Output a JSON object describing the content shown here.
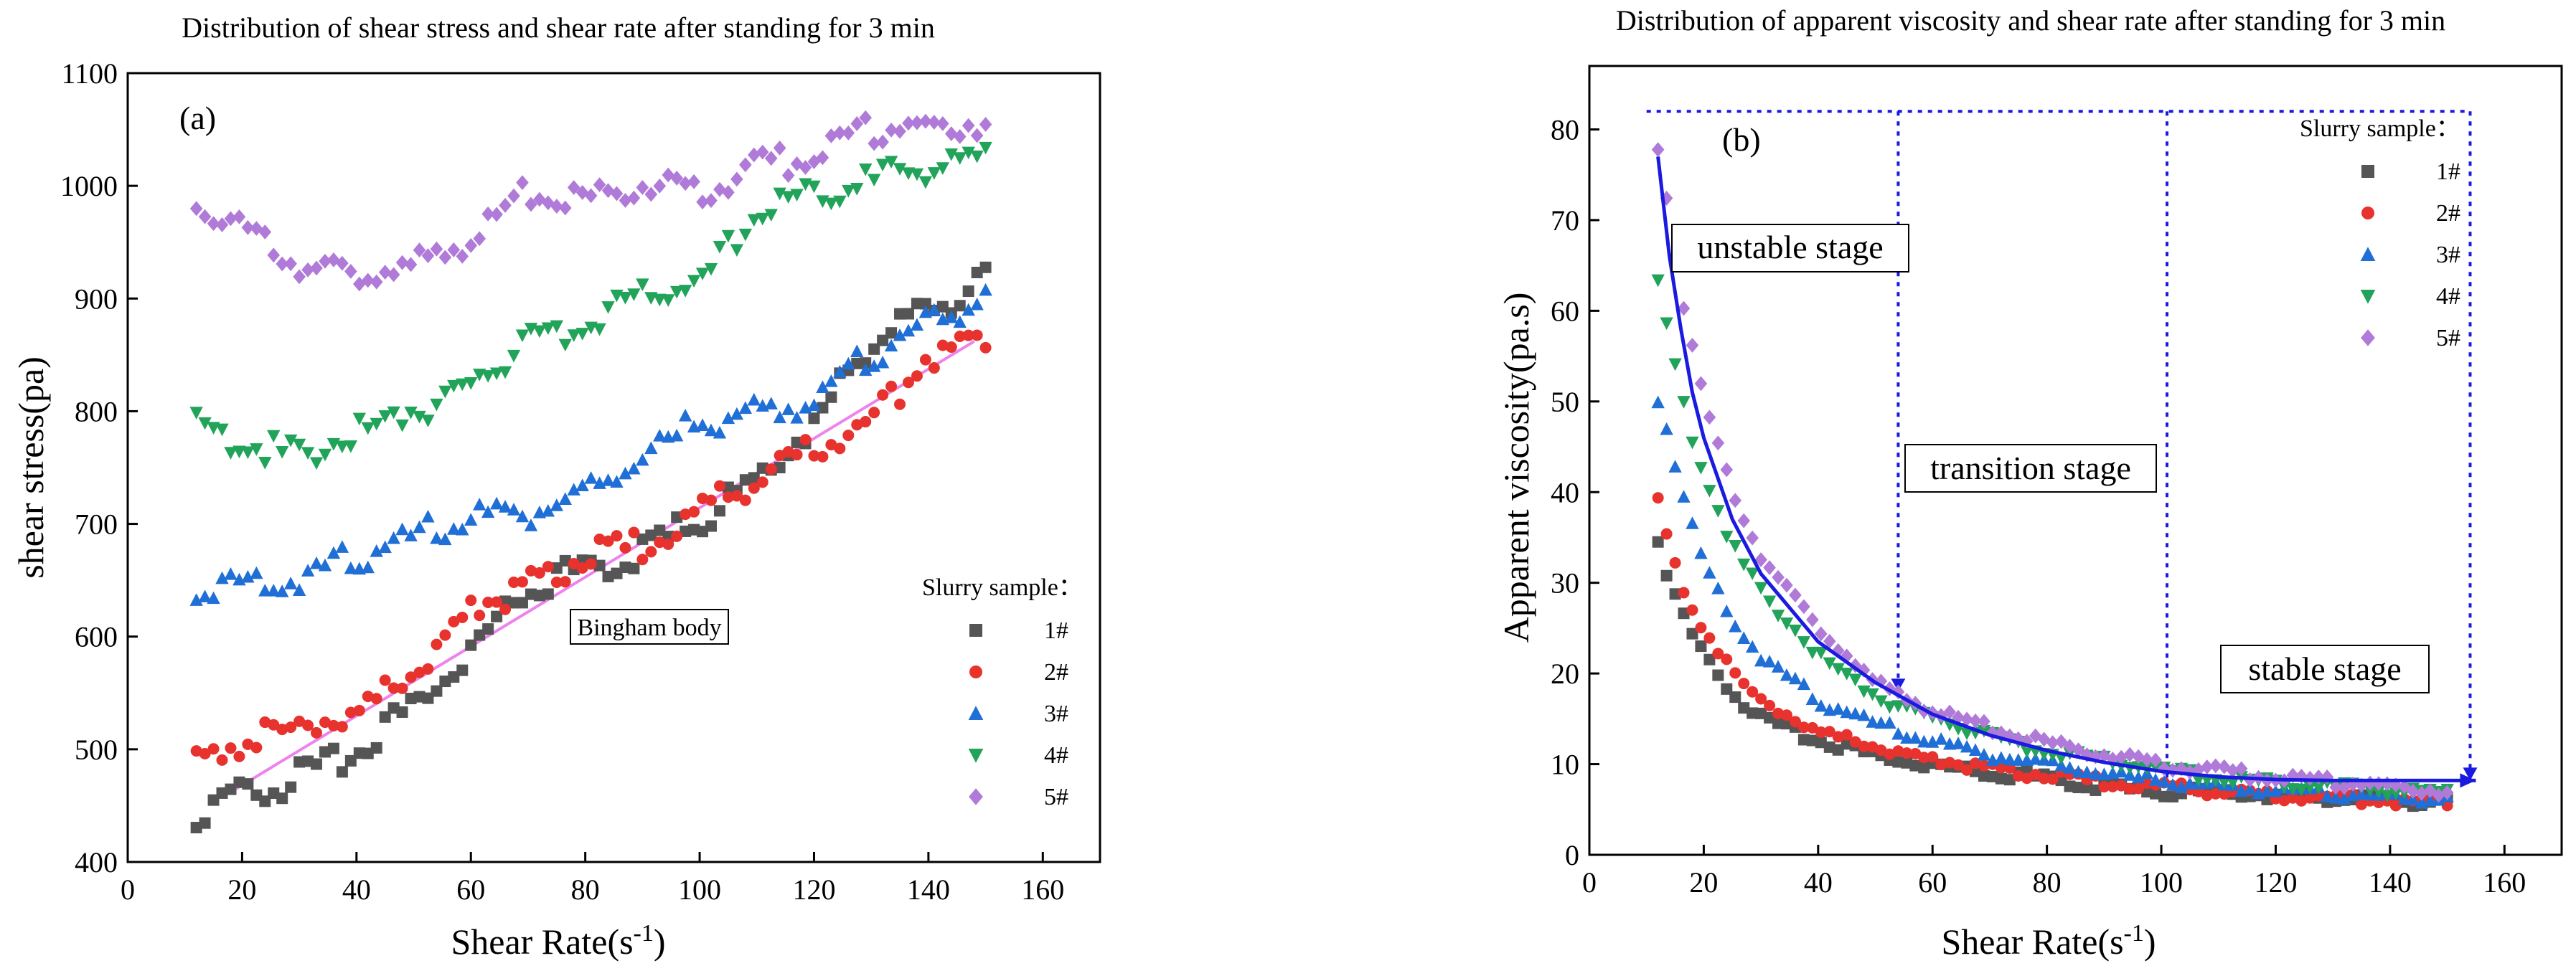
{
  "chart_data": [
    {
      "type": "scatter",
      "title": "Distribution of shear stress and shear rate after standing for 3 min",
      "panel_label": "(a)",
      "xlabel": "Shear Rate(s",
      "xlabel_sup": "-1",
      "xlabel_end": ")",
      "ylabel": "shear stress(pa)",
      "xlim": [
        0,
        170
      ],
      "ylim": [
        400,
        1100
      ],
      "xticks": [
        "0",
        "20",
        "40",
        "60",
        "80",
        "100",
        "120",
        "140",
        "160"
      ],
      "yticks": [
        "400",
        "500",
        "600",
        "700",
        "800",
        "900",
        "1000",
        "1100"
      ],
      "legend_title": "Slurry sample：",
      "legend_position": "lower-right",
      "annotation": "Bingham body",
      "fit_line": {
        "x": [
          18,
          148
        ],
        "y": [
          462,
          862
        ],
        "color": "#ee82ee"
      },
      "series": [
        {
          "name": "1#",
          "marker": "square",
          "color": "#555555",
          "x": [
            12,
            20,
            30,
            40,
            50,
            60,
            70,
            80,
            90,
            100,
            110,
            120,
            130,
            140,
            150
          ],
          "y": [
            442,
            460,
            475,
            495,
            540,
            590,
            645,
            660,
            675,
            705,
            735,
            790,
            860,
            890,
            915
          ]
        },
        {
          "name": "2#",
          "marker": "circle",
          "color": "#e8322e",
          "x": [
            12,
            20,
            30,
            40,
            50,
            60,
            70,
            80,
            90,
            100,
            110,
            120,
            130,
            140,
            150
          ],
          "y": [
            490,
            505,
            520,
            530,
            570,
            625,
            645,
            670,
            680,
            710,
            740,
            770,
            790,
            850,
            865
          ]
        },
        {
          "name": "3#",
          "marker": "triangle-up",
          "color": "#1f6fd6",
          "x": [
            12,
            20,
            30,
            40,
            50,
            60,
            70,
            80,
            90,
            100,
            110,
            120,
            130,
            140,
            150
          ],
          "y": [
            635,
            645,
            655,
            670,
            690,
            705,
            710,
            725,
            760,
            790,
            800,
            810,
            850,
            880,
            900
          ]
        },
        {
          "name": "4#",
          "marker": "triangle-down",
          "color": "#21a35a",
          "x": [
            12,
            20,
            30,
            40,
            50,
            60,
            70,
            80,
            90,
            100,
            110,
            120,
            130,
            140,
            150
          ],
          "y": [
            790,
            770,
            760,
            780,
            800,
            820,
            860,
            880,
            900,
            910,
            980,
            995,
            1005,
            1015,
            1020
          ]
        },
        {
          "name": "5#",
          "marker": "diamond",
          "color": "#b07ad8",
          "x": [
            12,
            20,
            30,
            40,
            50,
            60,
            70,
            80,
            90,
            100,
            110,
            120,
            130,
            140,
            150
          ],
          "y": [
            985,
            960,
            930,
            920,
            930,
            955,
            995,
            990,
            1000,
            995,
            1015,
            1030,
            1050,
            1050,
            1060
          ]
        }
      ]
    },
    {
      "type": "scatter",
      "title": "Distribution of apparent viscosity and shear rate after standing for 3 min",
      "panel_label": "(b)",
      "xlabel": "Shear Rate(s",
      "xlabel_sup": "-1",
      "xlabel_end": ")",
      "ylabel": "Apparent viscosity(pa.s)",
      "xlim": [
        0,
        170
      ],
      "ylim": [
        0,
        87
      ],
      "xticks": [
        "0",
        "20",
        "40",
        "60",
        "80",
        "100",
        "120",
        "140",
        "160"
      ],
      "yticks": [
        "0",
        "10",
        "20",
        "30",
        "40",
        "50",
        "60",
        "70",
        "80"
      ],
      "legend_title": "Slurry sample：",
      "legend_position": "upper-right",
      "stages": [
        "unstable stage",
        "transition stage",
        "stable stage"
      ],
      "stage_boundaries_x": [
        10,
        54,
        101,
        154
      ],
      "stage_top_y": 82,
      "series": [
        {
          "name": "1#",
          "marker": "square",
          "color": "#555555",
          "x": [
            12,
            14,
            16,
            18,
            20,
            25,
            30,
            40,
            50,
            60,
            70,
            80,
            90,
            100,
            110,
            120,
            130,
            140,
            150
          ],
          "y": [
            35,
            30,
            27,
            24,
            22,
            18,
            15,
            12.5,
            11,
            10,
            9,
            8.5,
            7.5,
            7,
            6.8,
            6.5,
            6.2,
            6,
            5.8
          ]
        },
        {
          "name": "2#",
          "marker": "circle",
          "color": "#e8322e",
          "x": [
            12,
            14,
            16,
            18,
            20,
            25,
            30,
            40,
            50,
            60,
            70,
            80,
            90,
            100,
            110,
            120,
            130,
            140,
            150
          ],
          "y": [
            39,
            34,
            30,
            27,
            25,
            20,
            17,
            13.5,
            12,
            10.5,
            9.5,
            8.7,
            8,
            7.5,
            7,
            6.6,
            6.3,
            6,
            5.8
          ]
        },
        {
          "name": "3#",
          "marker": "triangle-up",
          "color": "#1f6fd6",
          "x": [
            12,
            14,
            16,
            18,
            20,
            25,
            30,
            40,
            50,
            60,
            70,
            80,
            90,
            100,
            110,
            120,
            130,
            140,
            150
          ],
          "y": [
            50,
            46,
            40,
            36,
            32,
            26,
            22,
            17,
            14.5,
            12.5,
            11,
            10,
            9,
            8.2,
            7.6,
            7.2,
            6.8,
            6.4,
            6.1
          ]
        },
        {
          "name": "4#",
          "marker": "triangle-down",
          "color": "#21a35a",
          "x": [
            12,
            14,
            16,
            18,
            20,
            25,
            30,
            40,
            50,
            60,
            70,
            80,
            90,
            100,
            110,
            120,
            130,
            140,
            150
          ],
          "y": [
            63,
            57,
            51,
            46,
            42,
            34,
            29,
            22,
            17.5,
            15,
            13,
            11.5,
            10.3,
            9.3,
            8.5,
            8,
            7.5,
            7,
            6.6
          ]
        },
        {
          "name": "5#",
          "marker": "diamond",
          "color": "#b07ad8",
          "x": [
            12,
            14,
            16,
            18,
            20,
            25,
            30,
            40,
            50,
            60,
            70,
            80,
            90,
            100,
            110,
            120,
            130,
            140,
            150
          ],
          "y": [
            78,
            71,
            62,
            56,
            50,
            40,
            33,
            25,
            19,
            16,
            14,
            12.5,
            11,
            10,
            9.2,
            8.6,
            8,
            7.5,
            7.1
          ]
        }
      ],
      "trend_curve": {
        "color": "#1a1ae0",
        "x": [
          12,
          14,
          16,
          18,
          20,
          25,
          30,
          40,
          50,
          60,
          70,
          80,
          90,
          100,
          110,
          120,
          130,
          140,
          150,
          155
        ],
        "y": [
          77,
          66,
          58,
          51,
          46,
          37,
          31,
          23.5,
          19,
          15.5,
          13.2,
          11.5,
          10.2,
          9.2,
          8.6,
          8.3,
          8.2,
          8.2,
          8.2,
          8.2
        ]
      }
    }
  ],
  "colors": {
    "stage_lines": "#1a1ae0",
    "axis": "#000000"
  }
}
